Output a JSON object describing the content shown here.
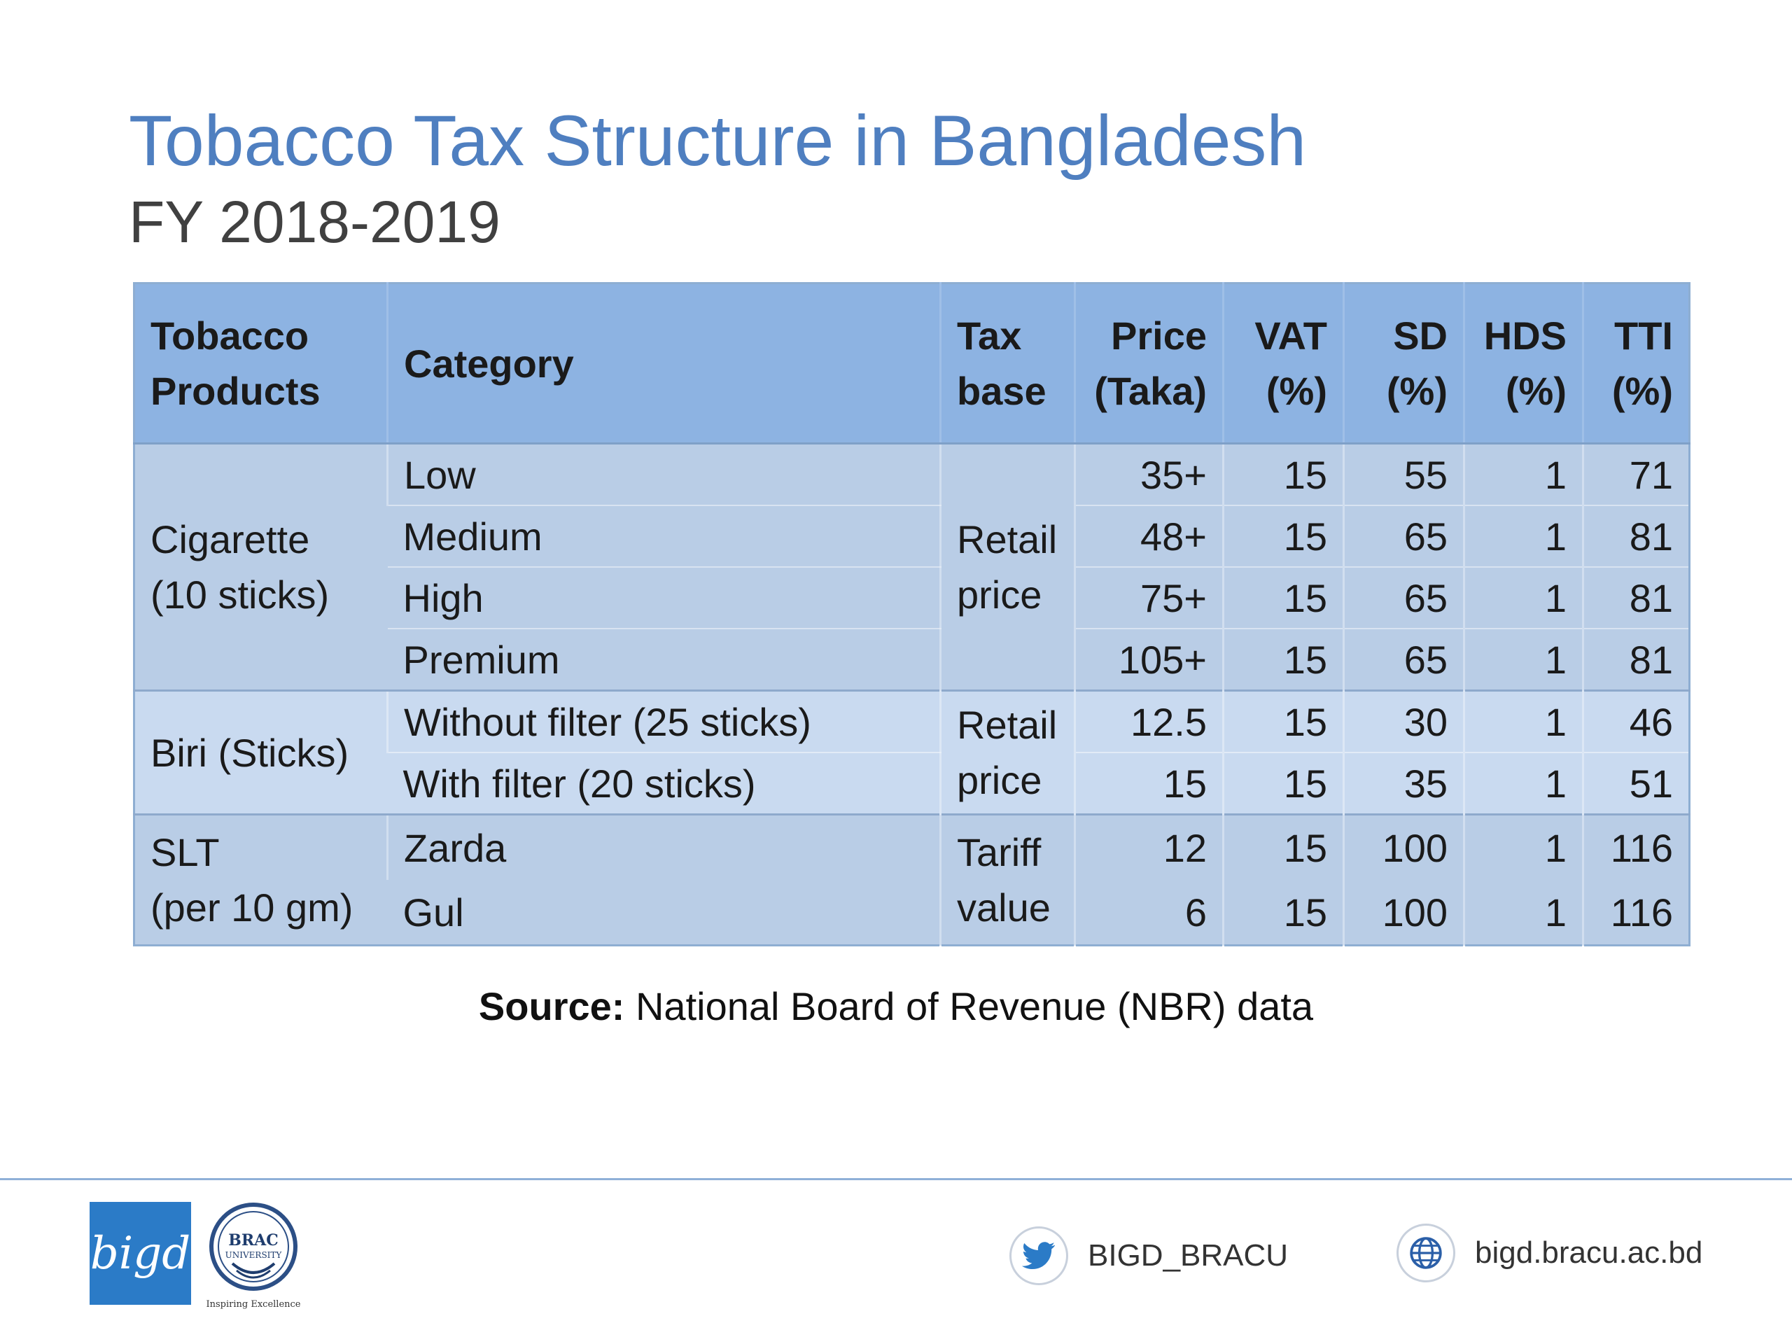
{
  "slide": {
    "title": "Tobacco Tax Structure in Bangladesh",
    "subtitle": "FY 2018-2019"
  },
  "table": {
    "headers": [
      {
        "line1": "Tobacco",
        "line2": "Products"
      },
      {
        "line1": "Category",
        "line2": ""
      },
      {
        "line1": "Tax",
        "line2": "base"
      },
      {
        "line1": "Price",
        "line2": "(Taka)"
      },
      {
        "line1": "VAT",
        "line2": "(%)"
      },
      {
        "line1": "SD",
        "line2": "(%)"
      },
      {
        "line1": "HDS",
        "line2": "(%)"
      },
      {
        "line1": "TTI",
        "line2": "(%)"
      }
    ],
    "groups": [
      {
        "product_line1": "Cigarette",
        "product_line2": "(10 sticks)",
        "tax_base_line1": "Retail",
        "tax_base_line2": "price",
        "rows": [
          {
            "category": "Low",
            "price": "35+",
            "vat": "15",
            "sd": "55",
            "hds": "1",
            "tti": "71"
          },
          {
            "category": "Medium",
            "price": "48+",
            "vat": "15",
            "sd": "65",
            "hds": "1",
            "tti": "81"
          },
          {
            "category": "High",
            "price": "75+",
            "vat": "15",
            "sd": "65",
            "hds": "1",
            "tti": "81"
          },
          {
            "category": "Premium",
            "price": "105+",
            "vat": "15",
            "sd": "65",
            "hds": "1",
            "tti": "81"
          }
        ]
      },
      {
        "product_line1": "Biri (Sticks)",
        "product_line2": "",
        "tax_base_line1": "Retail",
        "tax_base_line2": "price",
        "rows": [
          {
            "category": "Without filter (25 sticks)",
            "price": "12.5",
            "vat": "15",
            "sd": "30",
            "hds": "1",
            "tti": "46"
          },
          {
            "category": "With filter (20 sticks)",
            "price": "15",
            "vat": "15",
            "sd": "35",
            "hds": "1",
            "tti": "51"
          }
        ]
      },
      {
        "product_line1": "SLT",
        "product_line2": "(per 10 gm)",
        "tax_base_line1": "Tariff",
        "tax_base_line2": "value",
        "rows": [
          {
            "category": "Zarda",
            "price": "12",
            "vat": "15",
            "sd": "100",
            "hds": "1",
            "tti": "116"
          },
          {
            "category": "Gul",
            "price": "6",
            "vat": "15",
            "sd": "100",
            "hds": "1",
            "tti": "116"
          }
        ]
      }
    ]
  },
  "source": {
    "label": "Source:",
    "text": " National Board of Revenue (NBR) data"
  },
  "footer": {
    "bigd_logo_text": "bigd",
    "brac_logo_line1": "BRAC",
    "brac_logo_line2": "UNIVERSITY",
    "brac_tagline": "Inspiring Excellence",
    "twitter_handle": "BIGD_BRACU",
    "website": "bigd.bracu.ac.bd",
    "icons": {
      "twitter": "twitter-icon",
      "web": "globe-icon"
    },
    "colors": {
      "accent": "#4f7fc0",
      "header": "#8db3e2",
      "rule": "#8fb0d8",
      "bigd_logo": "#2b7bc7"
    }
  }
}
